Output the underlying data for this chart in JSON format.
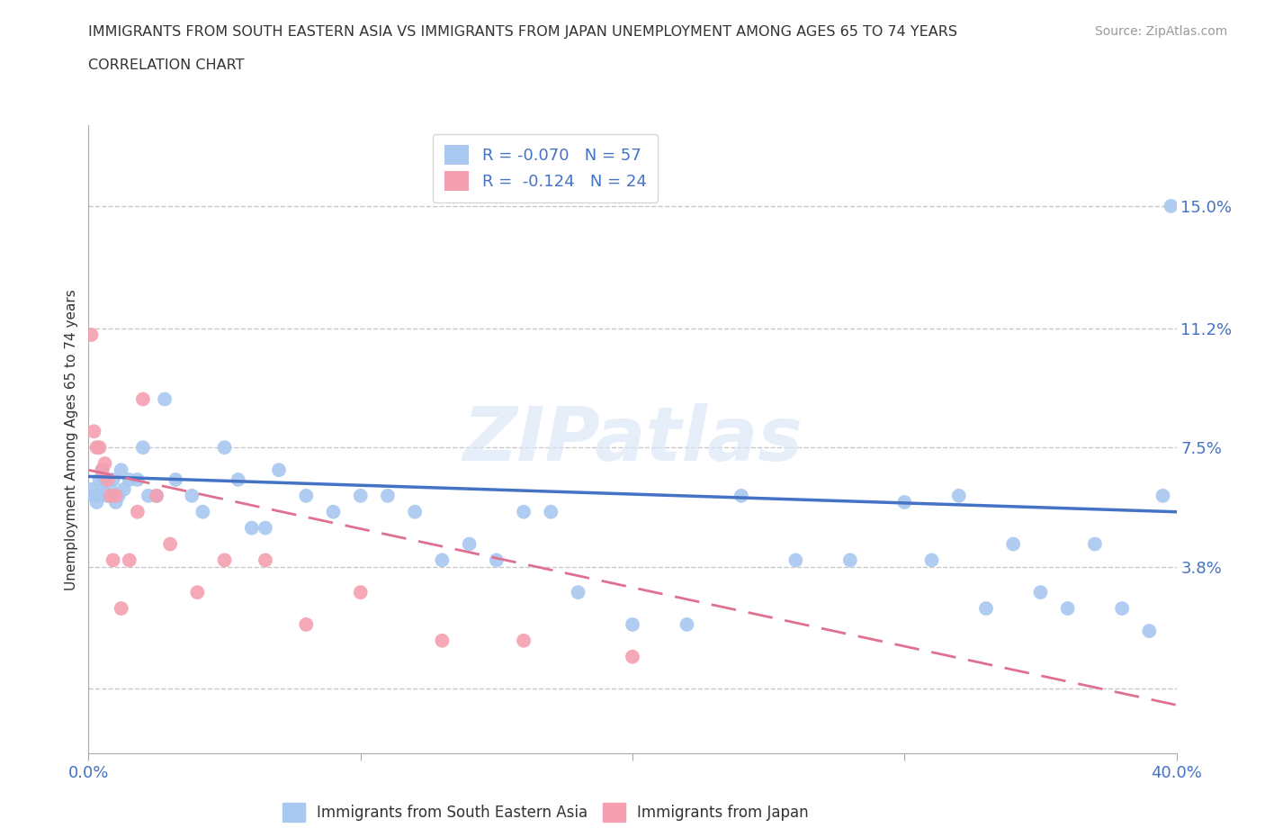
{
  "title_line1": "IMMIGRANTS FROM SOUTH EASTERN ASIA VS IMMIGRANTS FROM JAPAN UNEMPLOYMENT AMONG AGES 65 TO 74 YEARS",
  "title_line2": "CORRELATION CHART",
  "source_text": "Source: ZipAtlas.com",
  "ylabel": "Unemployment Among Ages 65 to 74 years",
  "xlim": [
    0.0,
    0.4
  ],
  "ylim": [
    -0.02,
    0.175
  ],
  "yticks": [
    0.0,
    0.038,
    0.075,
    0.112,
    0.15
  ],
  "ytick_labels": [
    "",
    "3.8%",
    "7.5%",
    "11.2%",
    "15.0%"
  ],
  "xtick_vals": [
    0.0,
    0.1,
    0.2,
    0.3,
    0.4
  ],
  "xtick_labels": [
    "0.0%",
    "",
    "",
    "",
    "40.0%"
  ],
  "watermark": "ZIPatlas",
  "r_sea": -0.07,
  "n_sea": 57,
  "r_japan": -0.124,
  "n_japan": 24,
  "sea_color": "#a8c8f0",
  "japan_color": "#f4a0b0",
  "trend_sea_color": "#4472c4",
  "trend_japan_color": "#e07090",
  "grid_color": "#c8c8c8",
  "label_color": "#4472c4",
  "text_color": "#333333",
  "source_color": "#999999",
  "sea_x": [
    0.001,
    0.002,
    0.003,
    0.004,
    0.004,
    0.005,
    0.005,
    0.006,
    0.007,
    0.008,
    0.009,
    0.01,
    0.011,
    0.012,
    0.013,
    0.015,
    0.018,
    0.02,
    0.022,
    0.025,
    0.028,
    0.032,
    0.038,
    0.042,
    0.05,
    0.055,
    0.06,
    0.065,
    0.07,
    0.08,
    0.09,
    0.1,
    0.11,
    0.12,
    0.13,
    0.14,
    0.15,
    0.16,
    0.17,
    0.18,
    0.2,
    0.22,
    0.24,
    0.26,
    0.28,
    0.3,
    0.31,
    0.32,
    0.33,
    0.34,
    0.35,
    0.36,
    0.37,
    0.38,
    0.39,
    0.395,
    0.398
  ],
  "sea_y": [
    0.062,
    0.06,
    0.058,
    0.065,
    0.06,
    0.068,
    0.062,
    0.065,
    0.06,
    0.062,
    0.065,
    0.058,
    0.06,
    0.068,
    0.062,
    0.065,
    0.065,
    0.075,
    0.06,
    0.06,
    0.09,
    0.065,
    0.06,
    0.055,
    0.075,
    0.065,
    0.05,
    0.05,
    0.068,
    0.06,
    0.055,
    0.06,
    0.06,
    0.055,
    0.04,
    0.045,
    0.04,
    0.055,
    0.055,
    0.03,
    0.02,
    0.02,
    0.06,
    0.04,
    0.04,
    0.058,
    0.04,
    0.06,
    0.025,
    0.045,
    0.03,
    0.025,
    0.045,
    0.025,
    0.018,
    0.06,
    0.15
  ],
  "japan_x": [
    0.001,
    0.002,
    0.003,
    0.004,
    0.005,
    0.006,
    0.007,
    0.008,
    0.009,
    0.01,
    0.012,
    0.015,
    0.018,
    0.02,
    0.025,
    0.03,
    0.04,
    0.05,
    0.065,
    0.08,
    0.1,
    0.13,
    0.16,
    0.2
  ],
  "japan_y": [
    0.11,
    0.08,
    0.075,
    0.075,
    0.068,
    0.07,
    0.065,
    0.06,
    0.04,
    0.06,
    0.025,
    0.04,
    0.055,
    0.09,
    0.06,
    0.045,
    0.03,
    0.04,
    0.04,
    0.02,
    0.03,
    0.015,
    0.015,
    0.01
  ]
}
